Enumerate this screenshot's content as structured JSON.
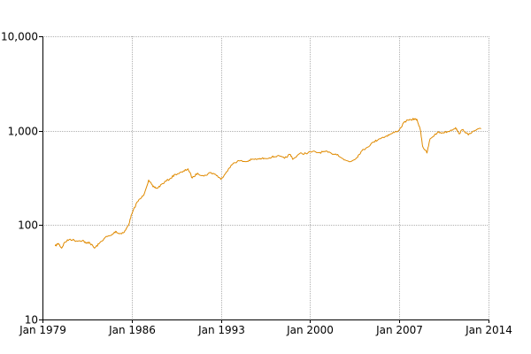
{
  "chart_data": {
    "type": "line",
    "title": "",
    "xlabel": "",
    "ylabel": "",
    "y_scale": "log",
    "ylim": [
      10,
      10000
    ],
    "xlim": [
      "1979-01",
      "2014-01"
    ],
    "grid": true,
    "legend": "none",
    "y_ticks": [
      {
        "value": 10,
        "label": "10"
      },
      {
        "value": 100,
        "label": "100"
      },
      {
        "value": 1000,
        "label": "1,000"
      },
      {
        "value": 10000,
        "label": "10,000"
      }
    ],
    "x_ticks": [
      {
        "value": "1979-01",
        "label": "Jan 1979"
      },
      {
        "value": "1986-01",
        "label": "Jan 1986"
      },
      {
        "value": "1993-01",
        "label": "Jan 1993"
      },
      {
        "value": "2000-01",
        "label": "Jan 2000"
      },
      {
        "value": "2007-01",
        "label": "Jan 2007"
      },
      {
        "value": "2014-01",
        "label": "Jan 2014"
      }
    ],
    "series": [
      {
        "color": "#e08a00",
        "points": [
          [
            "1980-01",
            60
          ],
          [
            "1980-04",
            64
          ],
          [
            "1980-07",
            57
          ],
          [
            "1980-10",
            66
          ],
          [
            "1981-03",
            71
          ],
          [
            "1981-09",
            68
          ],
          [
            "1982-03",
            69
          ],
          [
            "1982-06",
            64
          ],
          [
            "1982-09",
            66
          ],
          [
            "1983-02",
            57
          ],
          [
            "1983-06",
            63
          ],
          [
            "1983-12",
            74
          ],
          [
            "1984-06",
            78
          ],
          [
            "1984-10",
            86
          ],
          [
            "1985-01",
            81
          ],
          [
            "1985-06",
            84
          ],
          [
            "1985-10",
            100
          ],
          [
            "1986-01",
            130
          ],
          [
            "1986-06",
            175
          ],
          [
            "1986-12",
            205
          ],
          [
            "1987-05",
            300
          ],
          [
            "1987-09",
            255
          ],
          [
            "1988-01",
            245
          ],
          [
            "1988-06",
            275
          ],
          [
            "1989-01",
            310
          ],
          [
            "1989-06",
            345
          ],
          [
            "1990-01",
            365
          ],
          [
            "1990-06",
            395
          ],
          [
            "1990-10",
            315
          ],
          [
            "1991-03",
            355
          ],
          [
            "1991-09",
            330
          ],
          [
            "1992-03",
            360
          ],
          [
            "1992-08",
            345
          ],
          [
            "1993-01",
            305
          ],
          [
            "1993-06",
            365
          ],
          [
            "1994-01",
            455
          ],
          [
            "1994-06",
            480
          ],
          [
            "1995-01",
            470
          ],
          [
            "1995-06",
            495
          ],
          [
            "1996-01",
            500
          ],
          [
            "1996-06",
            510
          ],
          [
            "1997-01",
            525
          ],
          [
            "1997-06",
            540
          ],
          [
            "1998-01",
            510
          ],
          [
            "1998-06",
            560
          ],
          [
            "1998-09",
            500
          ],
          [
            "1999-03",
            570
          ],
          [
            "1999-09",
            575
          ],
          [
            "2000-03",
            600
          ],
          [
            "2000-09",
            585
          ],
          [
            "2001-03",
            600
          ],
          [
            "2001-09",
            575
          ],
          [
            "2002-03",
            560
          ],
          [
            "2002-09",
            490
          ],
          [
            "2003-03",
            470
          ],
          [
            "2003-09",
            520
          ],
          [
            "2004-01",
            600
          ],
          [
            "2004-06",
            660
          ],
          [
            "2005-01",
            760
          ],
          [
            "2005-06",
            820
          ],
          [
            "2006-01",
            880
          ],
          [
            "2006-06",
            930
          ],
          [
            "2007-01",
            1020
          ],
          [
            "2007-06",
            1250
          ],
          [
            "2007-12",
            1300
          ],
          [
            "2008-03",
            1340
          ],
          [
            "2008-06",
            1280
          ],
          [
            "2008-09",
            1000
          ],
          [
            "2008-11",
            680
          ],
          [
            "2009-03",
            580
          ],
          [
            "2009-06",
            820
          ],
          [
            "2010-01",
            960
          ],
          [
            "2010-06",
            950
          ],
          [
            "2011-01",
            1000
          ],
          [
            "2011-06",
            1080
          ],
          [
            "2011-09",
            930
          ],
          [
            "2012-01",
            1030
          ],
          [
            "2012-06",
            900
          ],
          [
            "2012-12",
            1000
          ],
          [
            "2013-06",
            1050
          ]
        ]
      }
    ]
  }
}
